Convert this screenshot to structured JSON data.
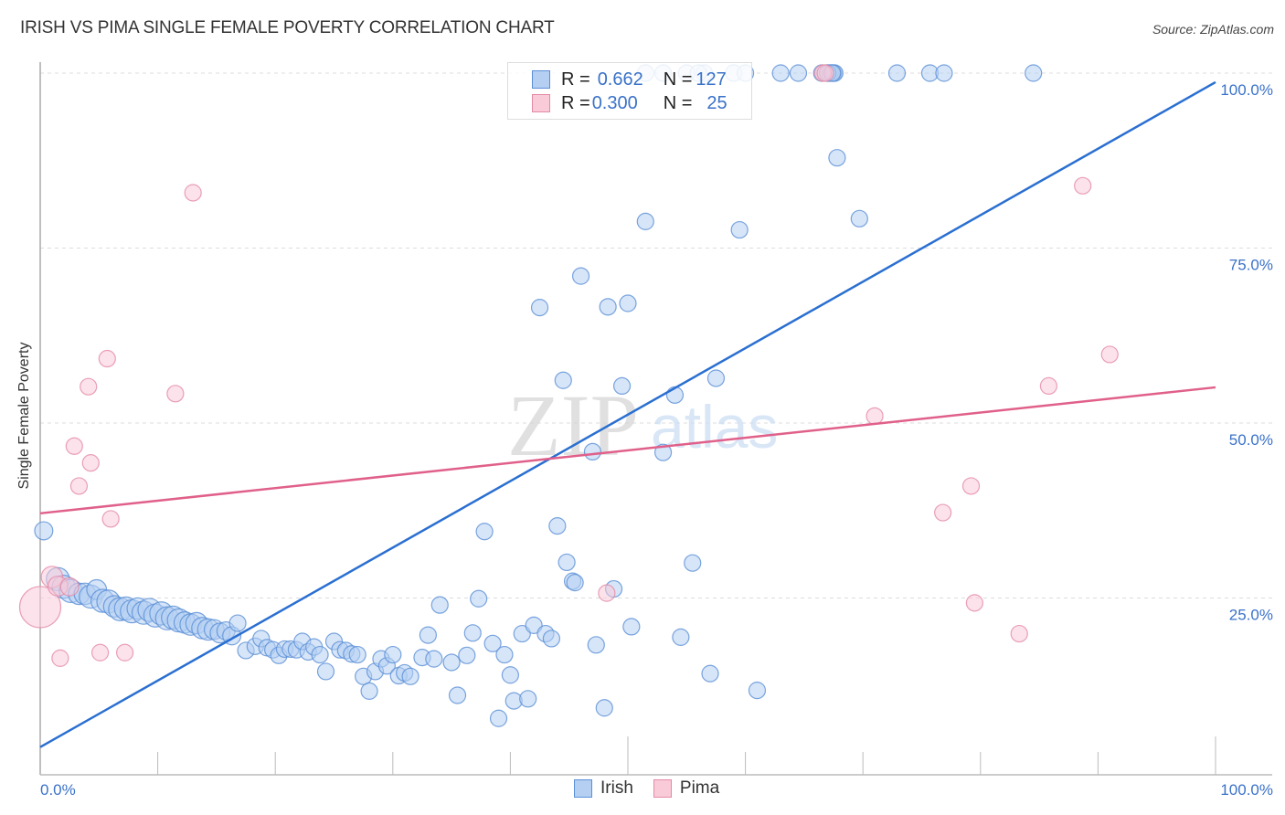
{
  "header": {
    "title": "IRISH VS PIMA SINGLE FEMALE POVERTY CORRELATION CHART",
    "source": "Source: ZipAtlas.com"
  },
  "watermark": {
    "zip": "ZIP",
    "atlas": "atlas"
  },
  "colors": {
    "irish_fill": "#b5cff3",
    "irish_stroke": "#5a8fd6",
    "irish_line": "#2a6fd1",
    "pima_fill": "#f9cbd8",
    "pima_stroke": "#e48aa6",
    "pima_line": "#e0608a",
    "axis_label": "#3a72c9"
  },
  "legend": {
    "rows": [
      {
        "series": "Irish",
        "r_label": "R = ",
        "r_value": "0.662",
        "n_label": "N = ",
        "n_value": "127"
      },
      {
        "series": "Pima",
        "r_label": "R = ",
        "r_value": "0.300",
        "n_label": "N = ",
        "n_value": "25"
      }
    ],
    "bottom": [
      {
        "label": "Irish"
      },
      {
        "label": "Pima"
      }
    ]
  },
  "chart_data": {
    "type": "scatter",
    "title": "IRISH VS PIMA SINGLE FEMALE POVERTY CORRELATION CHART",
    "xlabel": "",
    "ylabel": "Single Female Poverty",
    "xlim": [
      0,
      100
    ],
    "ylim": [
      0,
      100
    ],
    "x_tick_labels": [
      "0.0%",
      "100.0%"
    ],
    "y_tick_labels": [
      {
        "value": 25,
        "label": "25.0%"
      },
      {
        "value": 50,
        "label": "50.0%"
      },
      {
        "value": 75,
        "label": "75.0%"
      },
      {
        "value": 100,
        "label": "100.0%"
      }
    ],
    "grid": true,
    "legend_position": "top-center",
    "series": [
      {
        "name": "Irish",
        "R": 0.662,
        "N": 127,
        "trend": {
          "x": [
            0,
            100
          ],
          "y": [
            3.7,
            98.7
          ]
        },
        "points": [
          [
            0.3,
            34.6,
            1.1
          ],
          [
            1.5,
            27.7,
            1.4
          ],
          [
            2.0,
            26.6,
            1.4
          ],
          [
            2.6,
            26.0,
            1.4
          ],
          [
            3.3,
            25.6,
            1.3
          ],
          [
            3.8,
            25.6,
            1.3
          ],
          [
            4.3,
            25.2,
            1.4
          ],
          [
            4.8,
            26.2,
            1.2
          ],
          [
            5.3,
            24.6,
            1.4
          ],
          [
            5.8,
            24.5,
            1.4
          ],
          [
            6.3,
            23.8,
            1.3
          ],
          [
            6.8,
            23.4,
            1.4
          ],
          [
            7.3,
            23.5,
            1.4
          ],
          [
            7.8,
            23.1,
            1.4
          ],
          [
            8.3,
            23.5,
            1.3
          ],
          [
            8.8,
            22.9,
            1.4
          ],
          [
            9.3,
            23.3,
            1.4
          ],
          [
            9.8,
            22.5,
            1.4
          ],
          [
            10.3,
            22.8,
            1.4
          ],
          [
            10.8,
            22.1,
            1.4
          ],
          [
            11.3,
            22.2,
            1.4
          ],
          [
            11.8,
            21.8,
            1.4
          ],
          [
            12.3,
            21.5,
            1.3
          ],
          [
            12.8,
            21.2,
            1.3
          ],
          [
            13.3,
            21.4,
            1.3
          ],
          [
            13.8,
            20.7,
            1.3
          ],
          [
            14.3,
            20.5,
            1.3
          ],
          [
            14.8,
            20.5,
            1.2
          ],
          [
            15.3,
            20.0,
            1.2
          ],
          [
            15.8,
            20.3,
            1.1
          ],
          [
            16.3,
            19.6,
            1.1
          ],
          [
            16.8,
            21.4,
            1.0
          ],
          [
            17.5,
            17.5,
            1.0
          ],
          [
            18.3,
            18.1,
            1.0
          ],
          [
            18.8,
            19.2,
            1.0
          ],
          [
            19.3,
            17.9,
            1.0
          ],
          [
            19.8,
            17.6,
            1.0
          ],
          [
            20.3,
            16.8,
            1.0
          ],
          [
            20.8,
            17.7,
            1.0
          ],
          [
            21.3,
            17.7,
            1.0
          ],
          [
            21.8,
            17.6,
            1.0
          ],
          [
            22.3,
            18.8,
            1.0
          ],
          [
            22.8,
            17.3,
            1.0
          ],
          [
            23.3,
            18.0,
            1.0
          ],
          [
            23.8,
            16.9,
            1.0
          ],
          [
            24.3,
            14.5,
            1.0
          ],
          [
            25.0,
            18.8,
            1.0
          ],
          [
            25.5,
            17.6,
            1.0
          ],
          [
            26.0,
            17.5,
            1.0
          ],
          [
            26.5,
            17.0,
            1.0
          ],
          [
            27.0,
            16.9,
            1.0
          ],
          [
            27.5,
            13.8,
            1.0
          ],
          [
            28.0,
            11.7,
            1.0
          ],
          [
            28.5,
            14.5,
            1.0
          ],
          [
            29.0,
            16.3,
            1.0
          ],
          [
            29.5,
            15.3,
            1.0
          ],
          [
            30.0,
            16.9,
            1.0
          ],
          [
            30.5,
            13.9,
            1.0
          ],
          [
            31.0,
            14.3,
            1.0
          ],
          [
            31.5,
            13.8,
            1.0
          ],
          [
            32.5,
            16.5,
            1.0
          ],
          [
            33.0,
            19.7,
            1.0
          ],
          [
            33.5,
            16.3,
            1.0
          ],
          [
            34.0,
            24.0,
            1.0
          ],
          [
            35.0,
            15.8,
            1.0
          ],
          [
            35.5,
            11.1,
            1.0
          ],
          [
            36.3,
            16.8,
            1.0
          ],
          [
            36.8,
            20.0,
            1.0
          ],
          [
            37.3,
            24.9,
            1.0
          ],
          [
            37.8,
            34.5,
            1.0
          ],
          [
            38.5,
            18.5,
            1.0
          ],
          [
            39.0,
            7.8,
            1.0
          ],
          [
            39.5,
            16.9,
            1.0
          ],
          [
            40.0,
            14.0,
            1.0
          ],
          [
            40.3,
            10.3,
            1.0
          ],
          [
            41.0,
            19.9,
            1.0
          ],
          [
            41.5,
            10.6,
            1.0
          ],
          [
            42.0,
            21.1,
            1.0
          ],
          [
            42.5,
            66.5,
            1.0
          ],
          [
            43.0,
            19.9,
            1.0
          ],
          [
            43.5,
            19.2,
            1.0
          ],
          [
            44.0,
            35.3,
            1.0
          ],
          [
            44.5,
            56.1,
            1.0
          ],
          [
            44.8,
            30.1,
            1.0
          ],
          [
            45.3,
            27.4,
            1.0
          ],
          [
            45.5,
            27.2,
            1.0
          ],
          [
            46.0,
            71.0,
            1.0
          ],
          [
            47.0,
            45.9,
            1.0
          ],
          [
            47.3,
            18.3,
            1.0
          ],
          [
            48.0,
            9.3,
            1.0
          ],
          [
            48.3,
            66.6,
            1.0
          ],
          [
            48.8,
            26.3,
            1.0
          ],
          [
            49.5,
            55.3,
            1.0
          ],
          [
            50.0,
            67.1,
            1.0
          ],
          [
            50.3,
            20.9,
            1.0
          ],
          [
            51.5,
            78.8,
            1.0
          ],
          [
            53.0,
            45.8,
            1.0
          ],
          [
            54.0,
            54.0,
            1.0
          ],
          [
            54.5,
            19.4,
            1.0
          ],
          [
            55.5,
            30.0,
            1.0
          ],
          [
            57.0,
            14.2,
            1.0
          ],
          [
            57.5,
            56.4,
            1.0
          ],
          [
            59.5,
            77.6,
            1.0
          ],
          [
            61.0,
            11.8,
            1.0
          ],
          [
            63.0,
            100.0,
            1.0
          ],
          [
            64.5,
            100.0,
            1.0
          ],
          [
            66.5,
            100.0,
            1.0
          ],
          [
            67.0,
            100.0,
            1.0
          ],
          [
            67.5,
            100.0,
            1.0
          ],
          [
            67.3,
            100.0,
            1.0
          ],
          [
            67.0,
            100.0,
            1.0
          ],
          [
            67.2,
            100.0,
            1.0
          ],
          [
            67.4,
            100.0,
            1.0
          ],
          [
            67.6,
            100.0,
            1.0
          ],
          [
            67.0,
            100.0,
            1.0
          ],
          [
            67.4,
            100.0,
            1.0
          ],
          [
            67.8,
            87.9,
            1.0
          ],
          [
            69.7,
            79.2,
            1.0
          ],
          [
            72.9,
            100.0,
            1.0
          ],
          [
            75.7,
            100.0,
            1.0
          ],
          [
            76.9,
            100.0,
            1.0
          ],
          [
            84.5,
            100.0,
            1.0
          ],
          [
            56.5,
            100.0,
            1.0
          ],
          [
            55.0,
            100.0,
            1.0
          ],
          [
            56.0,
            100.0,
            1.0
          ],
          [
            59.0,
            100.0,
            1.0
          ],
          [
            60.0,
            100.0,
            1.0
          ],
          [
            53.0,
            100.0,
            1.0
          ],
          [
            51.5,
            100.0,
            1.0
          ]
        ]
      },
      {
        "name": "Pima",
        "R": 0.3,
        "N": 25,
        "trend": {
          "x": [
            0,
            100
          ],
          "y": [
            37.1,
            55.1
          ]
        },
        "points": [
          [
            0.0,
            23.7,
            2.5
          ],
          [
            1.0,
            28.0,
            1.3
          ],
          [
            1.5,
            26.7,
            1.2
          ],
          [
            2.5,
            26.6,
            1.1
          ],
          [
            1.7,
            16.4,
            1.0
          ],
          [
            5.1,
            17.2,
            1.0
          ],
          [
            7.2,
            17.2,
            1.0
          ],
          [
            2.9,
            46.7,
            1.0
          ],
          [
            3.3,
            41.0,
            1.0
          ],
          [
            4.1,
            55.2,
            1.0
          ],
          [
            4.3,
            44.3,
            1.0
          ],
          [
            5.7,
            59.2,
            1.0
          ],
          [
            6.0,
            36.3,
            1.0
          ],
          [
            11.5,
            54.2,
            1.0
          ],
          [
            13.0,
            82.9,
            1.0
          ],
          [
            48.2,
            25.7,
            1.0
          ],
          [
            66.6,
            100.0,
            1.0
          ],
          [
            66.8,
            100.0,
            1.0
          ],
          [
            71.0,
            51.0,
            1.0
          ],
          [
            76.8,
            37.2,
            1.0
          ],
          [
            79.2,
            41.0,
            1.0
          ],
          [
            79.5,
            24.3,
            1.0
          ],
          [
            83.3,
            19.9,
            1.0
          ],
          [
            85.8,
            55.3,
            1.0
          ],
          [
            88.7,
            83.9,
            1.0
          ],
          [
            91.0,
            59.8,
            1.0
          ]
        ]
      }
    ]
  }
}
